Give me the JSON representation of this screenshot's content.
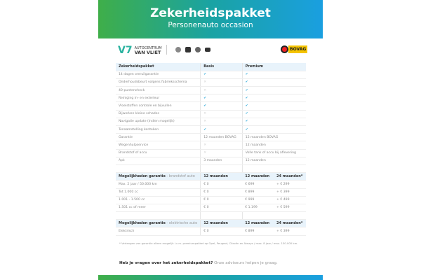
{
  "header": {
    "title": "Zekerheidspakket",
    "subtitle": "Personenauto occasion"
  },
  "logos": {
    "dealer_line1": "AUTOCENTRUM",
    "dealer_line2": "VAN VLIET",
    "bovag": "BOVAG"
  },
  "table1": {
    "headers": [
      "Zekerheidspakket",
      "Basis",
      "Premium"
    ],
    "rows": [
      [
        "14 dagen omruilgarantie",
        "check",
        "check"
      ],
      [
        "Onderhoudsbeurt volgens fabrieksschema",
        "x",
        "check"
      ],
      [
        "40-puntencheck",
        "x",
        "check"
      ],
      [
        "Reiniging in- en exterieur",
        "check",
        "check"
      ],
      [
        "Vloeistoffen controle en bijvullen",
        "check",
        "check"
      ],
      [
        "Bijwerken kleine schades",
        "x",
        "check"
      ],
      [
        "Navigatie update (indien mogelijk)",
        "x",
        "check"
      ],
      [
        "Tenaamstelling kenteken",
        "check",
        "check"
      ],
      [
        "Garantie",
        "12 maanden BOVAG",
        "12 maanden BOVAG"
      ],
      [
        "Wegenhulpservice",
        "x",
        "12 maanden"
      ],
      [
        "Brandstof of accu",
        "x",
        "Volle tank of accu bij aflevering"
      ],
      [
        "Apk",
        "3 maanden",
        "12 maanden"
      ]
    ]
  },
  "table2": {
    "title": "Mogelijkheden garantie",
    "subtitle": " - brandstof auto",
    "headers": [
      "12 maanden",
      "12 maanden",
      "24 maanden*"
    ],
    "rows": [
      [
        "Max. 2 jaar / 50.000 km",
        "€ 0",
        "€ 699",
        "+ € 299"
      ],
      [
        "Tot 1.000 cc",
        "€ 0",
        "€ 899",
        "+ € 399"
      ],
      [
        "1.001 - 1.500 cc",
        "€ 0",
        "€ 999",
        "+ € 499"
      ],
      [
        "1.501 cc of meer",
        "€ 0",
        "€ 1.199",
        "+ € 599"
      ]
    ]
  },
  "table3": {
    "title": "Mogelijkheden garantie",
    "subtitle": " - elektrische auto",
    "headers": [
      "12 maanden",
      "12 maanden",
      "24 maanden*"
    ],
    "rows": [
      [
        "Elektrisch",
        "€ 0",
        "€ 899",
        "+ € 399"
      ]
    ]
  },
  "footnote": "* Verlengen van garantie alleen mogelijk i.c.m. premiumpakket op Opel, Peugeot, Citroën en Aiways / max. 8 jaar / max. 150.000 km.",
  "question": {
    "bold": "Heb je vragen over het zekerheidspakket?",
    "text": " Onze adviseurs helpen je graag."
  },
  "icons": {
    "check": "✔",
    "x": "✕"
  }
}
